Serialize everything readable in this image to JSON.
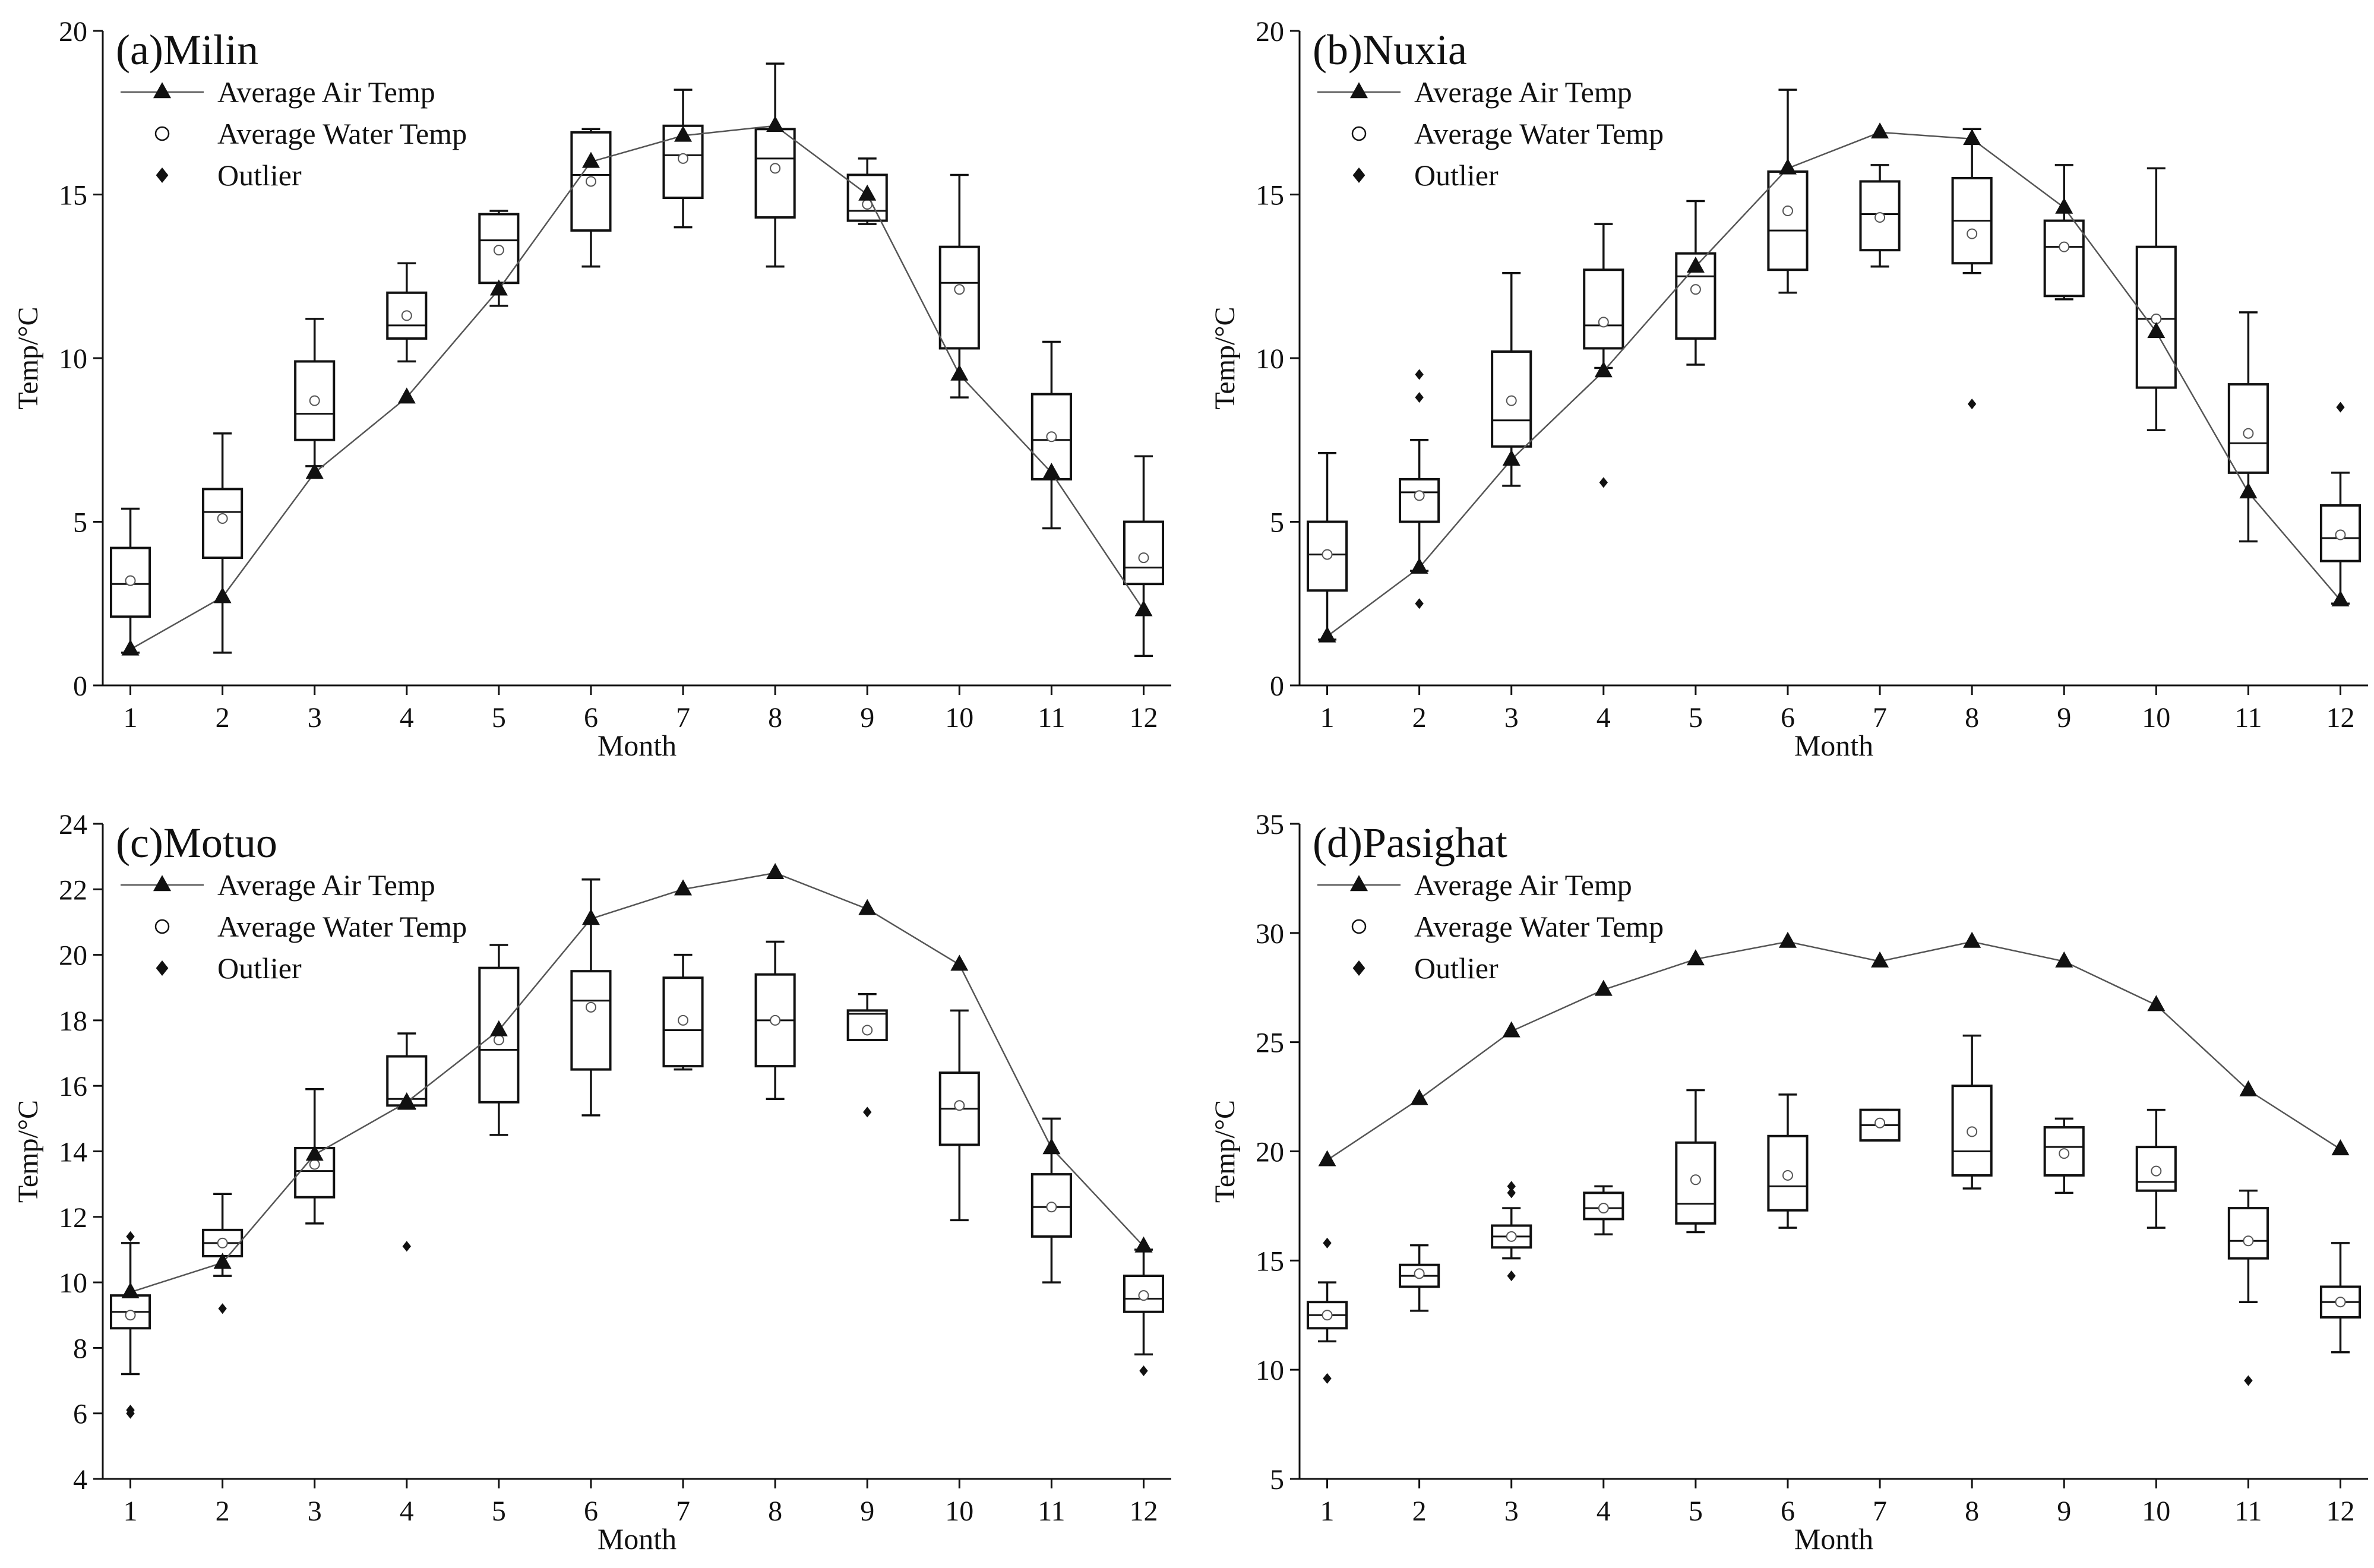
{
  "figure": {
    "x_label": "Month",
    "y_label": "Temp/°C",
    "legend": {
      "air": "Average Air Temp",
      "water": "Average Water Temp",
      "outlier": "Outlier"
    },
    "colors": {
      "ink": "#111111",
      "air_line": "#555555",
      "water_marker": "#555555"
    }
  },
  "chart_data": [
    {
      "type": "box",
      "title": "(a)Milin",
      "xlabel": "Month",
      "ylabel": "Temp/°C",
      "categories": [
        1,
        2,
        3,
        4,
        5,
        6,
        7,
        8,
        9,
        10,
        11,
        12
      ],
      "ylim": [
        0,
        20
      ],
      "yticks": [
        0,
        5,
        10,
        15,
        20
      ],
      "air_temp": [
        1.1,
        2.7,
        6.5,
        8.8,
        12.1,
        16.0,
        16.8,
        17.1,
        15.0,
        9.5,
        6.5,
        2.3
      ],
      "water_mean": [
        3.2,
        5.1,
        8.7,
        11.3,
        13.3,
        15.4,
        16.1,
        15.8,
        14.7,
        12.1,
        7.6,
        3.9
      ],
      "boxes": [
        {
          "min": 1.0,
          "q1": 2.1,
          "median": 3.1,
          "q3": 4.2,
          "max": 5.4
        },
        {
          "min": 1.0,
          "q1": 3.9,
          "median": 5.3,
          "q3": 6.0,
          "max": 7.7
        },
        {
          "min": 6.7,
          "q1": 7.5,
          "median": 8.3,
          "q3": 9.9,
          "max": 11.2
        },
        {
          "min": 9.9,
          "q1": 10.6,
          "median": 11.0,
          "q3": 12.0,
          "max": 12.9
        },
        {
          "min": 11.6,
          "q1": 12.3,
          "median": 13.6,
          "q3": 14.4,
          "max": 14.5
        },
        {
          "min": 12.8,
          "q1": 13.9,
          "median": 15.6,
          "q3": 16.9,
          "max": 17.0
        },
        {
          "min": 14.0,
          "q1": 14.9,
          "median": 16.2,
          "q3": 17.1,
          "max": 18.2
        },
        {
          "min": 12.8,
          "q1": 14.3,
          "median": 16.1,
          "q3": 17.0,
          "max": 19.0
        },
        {
          "min": 14.1,
          "q1": 14.2,
          "median": 14.5,
          "q3": 15.6,
          "max": 16.1
        },
        {
          "min": 8.8,
          "q1": 10.3,
          "median": 12.3,
          "q3": 13.4,
          "max": 15.6
        },
        {
          "min": 4.8,
          "q1": 6.3,
          "median": 7.5,
          "q3": 8.9,
          "max": 10.5
        },
        {
          "min": 0.9,
          "q1": 3.1,
          "median": 3.6,
          "q3": 5.0,
          "max": 7.0
        }
      ],
      "outliers": []
    },
    {
      "type": "box",
      "title": "(b)Nuxia",
      "xlabel": "Month",
      "ylabel": "Temp/°C",
      "categories": [
        1,
        2,
        3,
        4,
        5,
        6,
        7,
        8,
        9,
        10,
        11,
        12
      ],
      "ylim": [
        0,
        20
      ],
      "yticks": [
        0,
        5,
        10,
        15,
        20
      ],
      "air_temp": [
        1.5,
        3.6,
        6.9,
        9.6,
        12.8,
        15.8,
        16.9,
        16.7,
        14.6,
        10.8,
        5.9,
        2.6
      ],
      "water_mean": [
        4.0,
        5.8,
        8.7,
        11.1,
        12.1,
        14.5,
        14.3,
        13.8,
        13.4,
        11.2,
        7.7,
        4.6
      ],
      "boxes": [
        {
          "min": 1.4,
          "q1": 2.9,
          "median": 4.0,
          "q3": 5.0,
          "max": 7.1
        },
        {
          "min": 3.5,
          "q1": 5.0,
          "median": 5.9,
          "q3": 6.3,
          "max": 7.5
        },
        {
          "min": 6.1,
          "q1": 7.3,
          "median": 8.1,
          "q3": 10.2,
          "max": 12.6
        },
        {
          "min": 9.7,
          "q1": 10.3,
          "median": 11.0,
          "q3": 12.7,
          "max": 14.1
        },
        {
          "min": 9.8,
          "q1": 10.6,
          "median": 12.5,
          "q3": 13.2,
          "max": 14.8
        },
        {
          "min": 12.0,
          "q1": 12.7,
          "median": 13.9,
          "q3": 15.7,
          "max": 18.2
        },
        {
          "min": 12.8,
          "q1": 13.3,
          "median": 14.4,
          "q3": 15.4,
          "max": 15.9
        },
        {
          "min": 12.6,
          "q1": 12.9,
          "median": 14.2,
          "q3": 15.5,
          "max": 17.0
        },
        {
          "min": 11.8,
          "q1": 11.9,
          "median": 13.4,
          "q3": 14.2,
          "max": 15.9
        },
        {
          "min": 7.8,
          "q1": 9.1,
          "median": 11.2,
          "q3": 13.4,
          "max": 15.8
        },
        {
          "min": 4.4,
          "q1": 6.5,
          "median": 7.4,
          "q3": 9.2,
          "max": 11.4
        },
        {
          "min": 2.5,
          "q1": 3.8,
          "median": 4.5,
          "q3": 5.5,
          "max": 6.5
        }
      ],
      "outliers": [
        {
          "x": 2,
          "y": 9.5
        },
        {
          "x": 2,
          "y": 8.8
        },
        {
          "x": 2,
          "y": 2.5
        },
        {
          "x": 4,
          "y": 6.2
        },
        {
          "x": 8,
          "y": 8.6
        },
        {
          "x": 12,
          "y": 8.5
        }
      ]
    },
    {
      "type": "box",
      "title": "(c)Motuo",
      "xlabel": "Month",
      "ylabel": "Temp/°C",
      "categories": [
        1,
        2,
        3,
        4,
        5,
        6,
        7,
        8,
        9,
        10,
        11,
        12
      ],
      "ylim": [
        4,
        24
      ],
      "yticks": [
        4,
        6,
        8,
        10,
        12,
        14,
        16,
        18,
        20,
        22,
        24
      ],
      "air_temp": [
        9.7,
        10.6,
        13.9,
        15.5,
        17.7,
        21.1,
        22.0,
        22.5,
        21.4,
        19.7,
        14.1,
        11.1
      ],
      "water_mean": [
        9.0,
        11.2,
        13.6,
        15.5,
        17.4,
        18.4,
        18.0,
        18.0,
        17.7,
        15.4,
        12.3,
        9.6
      ],
      "boxes": [
        {
          "min": 7.2,
          "q1": 8.6,
          "median": 9.1,
          "q3": 9.6,
          "max": 11.2
        },
        {
          "min": 10.2,
          "q1": 10.8,
          "median": 11.2,
          "q3": 11.6,
          "max": 12.7
        },
        {
          "min": 11.8,
          "q1": 12.6,
          "median": 13.4,
          "q3": 14.1,
          "max": 15.9
        },
        {
          "min": 15.3,
          "q1": 15.4,
          "median": 15.6,
          "q3": 16.9,
          "max": 17.6
        },
        {
          "min": 14.5,
          "q1": 15.5,
          "median": 17.1,
          "q3": 19.6,
          "max": 20.3
        },
        {
          "min": 15.1,
          "q1": 16.5,
          "median": 18.6,
          "q3": 19.5,
          "max": 22.3
        },
        {
          "min": 16.5,
          "q1": 16.6,
          "median": 17.7,
          "q3": 19.3,
          "max": 20.0
        },
        {
          "min": 15.6,
          "q1": 16.6,
          "median": 18.0,
          "q3": 19.4,
          "max": 20.4
        },
        {
          "min": 17.4,
          "q1": 17.4,
          "median": 18.2,
          "q3": 18.3,
          "max": 18.8
        },
        {
          "min": 11.9,
          "q1": 14.2,
          "median": 15.3,
          "q3": 16.4,
          "max": 18.3
        },
        {
          "min": 10.0,
          "q1": 11.4,
          "median": 12.3,
          "q3": 13.3,
          "max": 15.0
        },
        {
          "min": 7.8,
          "q1": 9.1,
          "median": 9.5,
          "q3": 10.2,
          "max": 11.0
        }
      ],
      "outliers": [
        {
          "x": 1,
          "y": 11.4
        },
        {
          "x": 1,
          "y": 6.1
        },
        {
          "x": 1,
          "y": 6.0
        },
        {
          "x": 2,
          "y": 9.2
        },
        {
          "x": 4,
          "y": 11.1
        },
        {
          "x": 9,
          "y": 15.2
        },
        {
          "x": 12,
          "y": 7.3
        }
      ]
    },
    {
      "type": "box",
      "title": "(d)Pasighat",
      "xlabel": "Month",
      "ylabel": "Temp/°C",
      "categories": [
        1,
        2,
        3,
        4,
        5,
        6,
        7,
        8,
        9,
        10,
        11,
        12
      ],
      "ylim": [
        5,
        35
      ],
      "yticks": [
        5,
        10,
        15,
        20,
        25,
        30,
        35
      ],
      "air_temp": [
        19.6,
        22.4,
        25.5,
        27.4,
        28.8,
        29.6,
        28.7,
        29.6,
        28.7,
        26.7,
        22.8,
        20.1
      ],
      "water_mean": [
        12.5,
        14.4,
        16.1,
        17.4,
        18.7,
        18.9,
        21.3,
        20.9,
        19.9,
        19.1,
        15.9,
        13.1
      ],
      "boxes": [
        {
          "min": 11.3,
          "q1": 11.9,
          "median": 12.5,
          "q3": 13.1,
          "max": 14.0
        },
        {
          "min": 12.7,
          "q1": 13.8,
          "median": 14.3,
          "q3": 14.8,
          "max": 15.7
        },
        {
          "min": 15.1,
          "q1": 15.6,
          "median": 16.1,
          "q3": 16.6,
          "max": 17.4
        },
        {
          "min": 16.2,
          "q1": 16.9,
          "median": 17.4,
          "q3": 18.1,
          "max": 18.4
        },
        {
          "min": 16.3,
          "q1": 16.7,
          "median": 17.6,
          "q3": 20.4,
          "max": 22.8
        },
        {
          "min": 16.5,
          "q1": 17.3,
          "median": 18.4,
          "q3": 20.7,
          "max": 22.6
        },
        {
          "min": 20.5,
          "q1": 20.5,
          "median": 21.2,
          "q3": 21.9,
          "max": 21.9
        },
        {
          "min": 18.3,
          "q1": 18.9,
          "median": 20.0,
          "q3": 23.0,
          "max": 25.3
        },
        {
          "min": 18.1,
          "q1": 18.9,
          "median": 20.2,
          "q3": 21.1,
          "max": 21.5
        },
        {
          "min": 16.5,
          "q1": 18.2,
          "median": 18.6,
          "q3": 20.2,
          "max": 21.9
        },
        {
          "min": 13.1,
          "q1": 15.1,
          "median": 15.9,
          "q3": 17.4,
          "max": 18.2
        },
        {
          "min": 10.8,
          "q1": 12.4,
          "median": 13.1,
          "q3": 13.8,
          "max": 15.8
        }
      ],
      "outliers": [
        {
          "x": 1,
          "y": 15.8
        },
        {
          "x": 1,
          "y": 9.6
        },
        {
          "x": 3,
          "y": 18.4
        },
        {
          "x": 3,
          "y": 18.1
        },
        {
          "x": 3,
          "y": 14.3
        },
        {
          "x": 11,
          "y": 9.5
        }
      ]
    }
  ]
}
